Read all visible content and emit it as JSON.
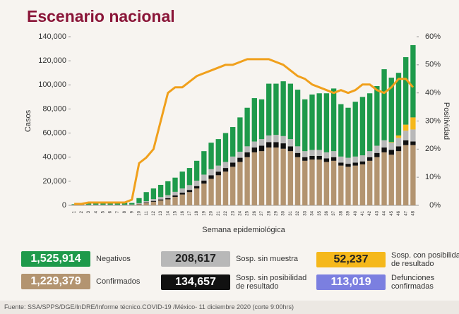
{
  "title": "Escenario nacional",
  "chart_data": {
    "type": "stacked-bar-line",
    "y_label": "Casos",
    "y2_label": "Positividad",
    "x_label": "Semana epidemiológica",
    "categories": [
      "1",
      "2",
      "3",
      "4",
      "5",
      "6",
      "7",
      "8",
      "9",
      "10",
      "11",
      "12",
      "13",
      "14",
      "15",
      "16",
      "17",
      "18",
      "19",
      "20",
      "21",
      "22",
      "23",
      "24",
      "25",
      "26",
      "27",
      "28",
      "29",
      "30",
      "31",
      "32",
      "33",
      "34",
      "35",
      "36",
      "37",
      "38",
      "39",
      "40",
      "41",
      "42",
      "43",
      "44",
      "45",
      "46",
      "47",
      "48"
    ],
    "ylim": [
      0,
      140000
    ],
    "yticks": [
      {
        "value": 0,
        "label": "0"
      },
      {
        "value": 20000,
        "label": "20,000"
      },
      {
        "value": 40000,
        "label": "40,000"
      },
      {
        "value": 60000,
        "label": "60,000"
      },
      {
        "value": 80000,
        "label": "80,000"
      },
      {
        "value": 100000,
        "label": "100,000"
      },
      {
        "value": 120000,
        "label": "120,000"
      },
      {
        "value": 140000,
        "label": "140,000"
      }
    ],
    "y2lim": [
      0,
      60
    ],
    "y2ticks": [
      {
        "value": 0,
        "label": "0%"
      },
      {
        "value": 10,
        "label": "10%"
      },
      {
        "value": 20,
        "label": "20%"
      },
      {
        "value": 30,
        "label": "30%"
      },
      {
        "value": 40,
        "label": "40%"
      },
      {
        "value": 50,
        "label": "50%"
      },
      {
        "value": 60,
        "label": "60%"
      }
    ],
    "series": [
      {
        "name": "Confirmados",
        "total": "1,229,379",
        "color": "#b39470",
        "values": [
          300,
          300,
          300,
          300,
          300,
          300,
          300,
          300,
          400,
          1000,
          2000,
          3000,
          4000,
          5000,
          7000,
          9000,
          11000,
          14000,
          18000,
          22000,
          25000,
          28000,
          32000,
          36000,
          40000,
          44000,
          45000,
          48000,
          48000,
          47000,
          45000,
          40000,
          37000,
          38000,
          38000,
          36000,
          37000,
          33000,
          32000,
          33000,
          34000,
          37000,
          40000,
          44000,
          42000,
          45000,
          50000,
          50000
        ]
      },
      {
        "name": "Sosp. sin posibilidad de resultado",
        "total": "134,657",
        "color": "#111111",
        "values": [
          100,
          100,
          100,
          100,
          100,
          100,
          100,
          100,
          100,
          300,
          500,
          700,
          900,
          1000,
          1200,
          1500,
          1800,
          2000,
          2500,
          3000,
          3000,
          3000,
          3500,
          3500,
          4000,
          4000,
          4500,
          4500,
          4500,
          4500,
          4000,
          3500,
          3000,
          3000,
          3000,
          3000,
          3000,
          2500,
          2500,
          2500,
          2500,
          3000,
          3500,
          4000,
          4000,
          4000,
          4000,
          3000
        ]
      },
      {
        "name": "Sosp. sin muestra",
        "total": "208,617",
        "color": "#b8b8b8",
        "values": [
          200,
          200,
          200,
          200,
          200,
          200,
          200,
          200,
          200,
          500,
          1000,
          1500,
          2000,
          2500,
          3000,
          3500,
          4000,
          4500,
          5000,
          5000,
          5000,
          5000,
          5000,
          5000,
          5000,
          5000,
          5500,
          5500,
          6000,
          6000,
          6000,
          5500,
          5000,
          5000,
          5000,
          5000,
          5000,
          5000,
          5000,
          5000,
          5000,
          5000,
          6000,
          6000,
          6000,
          7000,
          8000,
          10000
        ]
      },
      {
        "name": "Sosp. con posibilidad de resultado",
        "total": "52,237",
        "color": "#f5b81b",
        "values": [
          0,
          0,
          0,
          0,
          0,
          0,
          0,
          0,
          0,
          0,
          0,
          0,
          0,
          0,
          0,
          0,
          0,
          0,
          0,
          0,
          0,
          0,
          0,
          0,
          0,
          0,
          0,
          0,
          0,
          0,
          0,
          0,
          0,
          0,
          0,
          0,
          0,
          0,
          0,
          0,
          0,
          0,
          0,
          0,
          500,
          2000,
          5000,
          10000
        ]
      },
      {
        "name": "Negativos",
        "total": "1,525,914",
        "color": "#1e9a4b",
        "values": [
          400,
          900,
          1400,
          1400,
          1400,
          1400,
          1400,
          1400,
          1300,
          4200,
          7500,
          8800,
          10100,
          11500,
          11800,
          14000,
          14200,
          16500,
          19500,
          22000,
          22000,
          24000,
          24500,
          28500,
          32000,
          36000,
          33000,
          43000,
          42500,
          45500,
          46000,
          47000,
          43000,
          46000,
          47000,
          49000,
          52000,
          43500,
          41500,
          45500,
          48500,
          48000,
          49500,
          59000,
          53500,
          52000,
          56000,
          60000
        ]
      },
      {
        "axis": "y2",
        "color": "#f0a01c",
        "values": [
          0.5,
          0.5,
          1,
          1,
          1,
          1,
          1,
          1,
          2,
          15,
          17,
          20,
          30,
          40,
          42,
          42,
          44,
          46,
          47,
          48,
          49,
          50,
          50,
          51,
          52,
          52,
          52,
          52,
          51,
          50,
          48,
          46,
          45,
          43,
          42,
          41,
          40,
          41,
          40,
          41,
          43,
          43,
          41,
          40,
          42,
          45,
          45,
          42
        ]
      }
    ],
    "extra_legend": {
      "name": "Defunciones confirmadas",
      "total": "113,019",
      "color": "#7b7fe0"
    }
  },
  "footer": "Fuente: SSA/SPPS/DGE/InDRE/Informe técnico.COVID-19 /México- 11 diciembre 2020 (corte 9:00hrs)"
}
